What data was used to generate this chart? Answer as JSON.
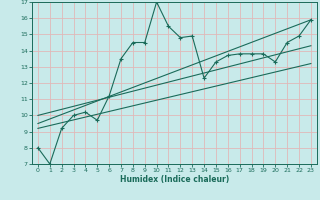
{
  "bg_color": "#c8eaea",
  "grid_color": "#e0b8b8",
  "line_color": "#1a6b5a",
  "xlabel": "Humidex (Indice chaleur)",
  "xlim": [
    -0.5,
    23.5
  ],
  "ylim": [
    7,
    17
  ],
  "xticks": [
    0,
    1,
    2,
    3,
    4,
    5,
    6,
    7,
    8,
    9,
    10,
    11,
    12,
    13,
    14,
    15,
    16,
    17,
    18,
    19,
    20,
    21,
    22,
    23
  ],
  "yticks": [
    7,
    8,
    9,
    10,
    11,
    12,
    13,
    14,
    15,
    16,
    17
  ],
  "line1_x": [
    0,
    1,
    2,
    3,
    4,
    5,
    6,
    7,
    8,
    9,
    10,
    11,
    12,
    13,
    14,
    15,
    16,
    17,
    18,
    19,
    20,
    21,
    22,
    23
  ],
  "line1_y": [
    8.0,
    7.0,
    9.2,
    10.0,
    10.2,
    9.7,
    11.2,
    13.5,
    14.5,
    14.5,
    17.0,
    15.5,
    14.8,
    14.9,
    12.3,
    13.3,
    13.7,
    13.8,
    13.8,
    13.8,
    13.3,
    14.5,
    14.9,
    15.9
  ],
  "line2_x": [
    0,
    23
  ],
  "line2_y": [
    9.5,
    15.9
  ],
  "line3_x": [
    0,
    23
  ],
  "line3_y": [
    9.2,
    13.2
  ],
  "line4_x": [
    0,
    23
  ],
  "line4_y": [
    10.0,
    14.3
  ]
}
